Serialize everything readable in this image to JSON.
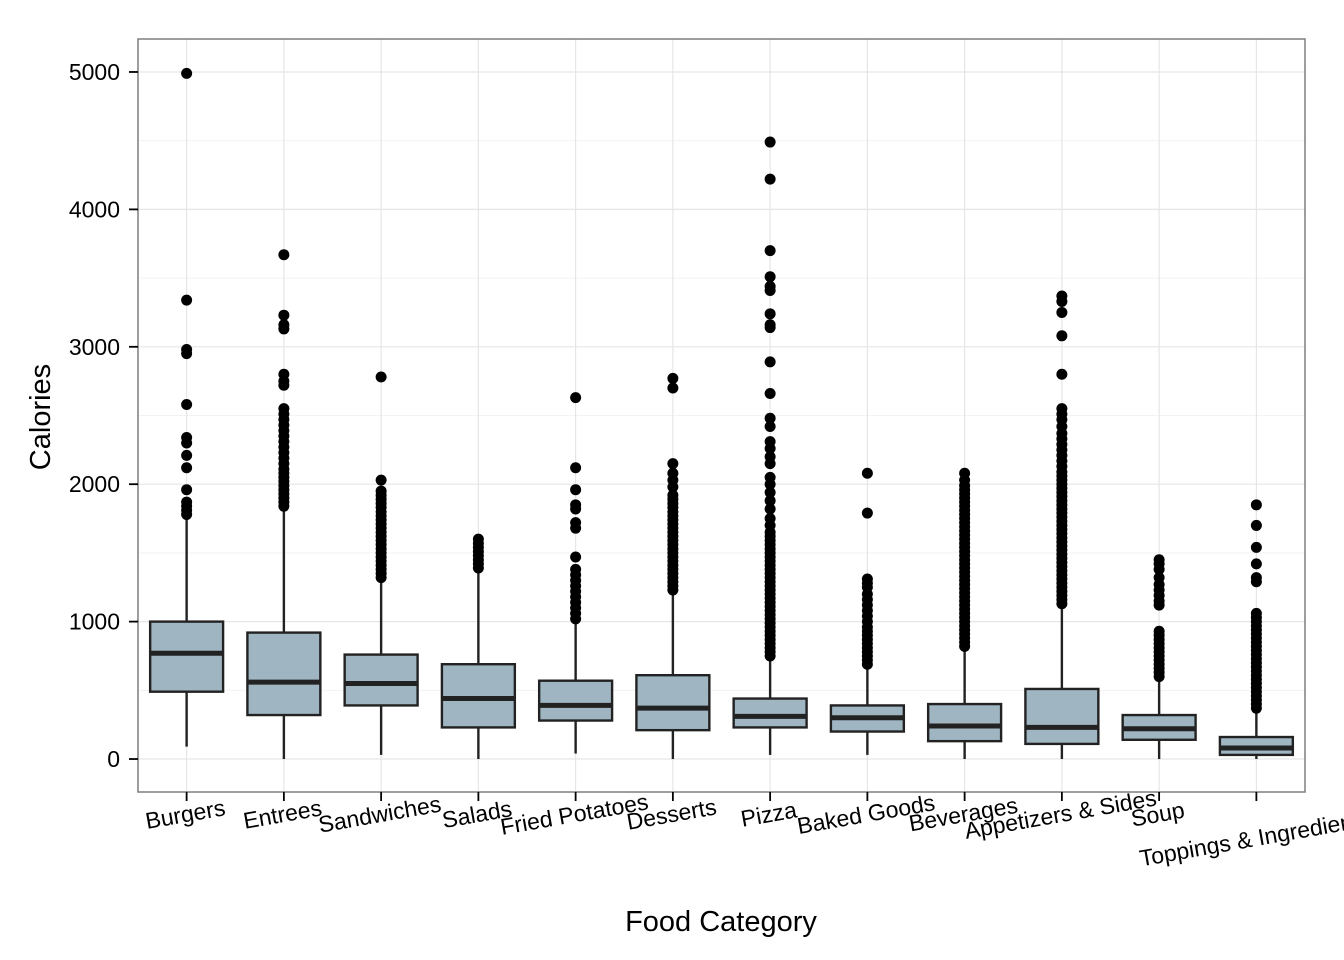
{
  "chart_data": {
    "type": "boxplot",
    "title": "",
    "xlabel": "Food Category",
    "ylabel": "Calories",
    "ylim": [
      -240,
      5240
    ],
    "yticks": [
      0,
      1000,
      2000,
      3000,
      4000,
      5000
    ],
    "grid": true,
    "colors": {
      "box_fill": "#9fb5c2",
      "box_stroke": "#222222",
      "outlier": "#000000",
      "grid_major": "#e6e6e6",
      "grid_minor": "#f3f3f3",
      "panel_border": "#7f7f7f"
    },
    "categories": [
      "Burgers",
      "Entrees",
      "Sandwiches",
      "Salads",
      "Fried Potatoes",
      "Desserts",
      "Pizza",
      "Baked Goods",
      "Beverages",
      "Appetizers & Sides",
      "Soup",
      "Toppings & Ingredients"
    ],
    "boxes": [
      {
        "category": "Burgers",
        "whisker_low": 90,
        "q1": 490,
        "median": 770,
        "q3": 1000,
        "whisker_high": 1760,
        "outliers": [
          1780,
          1810,
          1840,
          1870,
          1960,
          2120,
          2210,
          2300,
          2340,
          2580,
          2950,
          2980,
          3340,
          4990
        ]
      },
      {
        "category": "Entrees",
        "whisker_low": 0,
        "q1": 320,
        "median": 560,
        "q3": 920,
        "whisker_high": 1820,
        "outliers": [
          1840,
          1870,
          1900,
          1930,
          1960,
          1990,
          2020,
          2050,
          2080,
          2110,
          2150,
          2190,
          2230,
          2270,
          2310,
          2350,
          2390,
          2430,
          2470,
          2510,
          2550,
          2720,
          2750,
          2800,
          3130,
          3160,
          3230,
          3670
        ]
      },
      {
        "category": "Sandwiches",
        "whisker_low": 30,
        "q1": 390,
        "median": 550,
        "q3": 760,
        "whisker_high": 1300,
        "outliers": [
          1320,
          1350,
          1380,
          1410,
          1440,
          1470,
          1500,
          1530,
          1560,
          1590,
          1620,
          1650,
          1680,
          1710,
          1740,
          1770,
          1800,
          1830,
          1860,
          1890,
          1920,
          1950,
          2030,
          2780
        ]
      },
      {
        "category": "Salads",
        "whisker_low": 0,
        "q1": 230,
        "median": 440,
        "q3": 690,
        "whisker_high": 1370,
        "outliers": [
          1390,
          1420,
          1450,
          1480,
          1510,
          1540,
          1570,
          1600
        ]
      },
      {
        "category": "Fried Potatoes",
        "whisker_low": 40,
        "q1": 280,
        "median": 390,
        "q3": 570,
        "whisker_high": 1000,
        "outliers": [
          1020,
          1060,
          1100,
          1140,
          1180,
          1220,
          1260,
          1300,
          1340,
          1380,
          1470,
          1680,
          1720,
          1820,
          1850,
          1960,
          2120,
          2630
        ]
      },
      {
        "category": "Desserts",
        "whisker_low": 0,
        "q1": 210,
        "median": 370,
        "q3": 610,
        "whisker_high": 1210,
        "outliers": [
          1230,
          1260,
          1290,
          1320,
          1350,
          1380,
          1410,
          1440,
          1470,
          1500,
          1530,
          1560,
          1590,
          1620,
          1650,
          1680,
          1710,
          1740,
          1770,
          1800,
          1830,
          1860,
          1890,
          1920,
          1980,
          2030,
          2080,
          2150,
          2700,
          2770
        ]
      },
      {
        "category": "Pizza",
        "whisker_low": 30,
        "q1": 230,
        "median": 310,
        "q3": 440,
        "whisker_high": 730,
        "outliers": [
          750,
          780,
          810,
          840,
          870,
          900,
          930,
          960,
          990,
          1020,
          1050,
          1080,
          1110,
          1140,
          1170,
          1200,
          1230,
          1260,
          1290,
          1320,
          1350,
          1380,
          1410,
          1440,
          1470,
          1500,
          1530,
          1560,
          1590,
          1620,
          1650,
          1700,
          1750,
          1820,
          1880,
          1940,
          2000,
          2050,
          2150,
          2200,
          2260,
          2310,
          2420,
          2480,
          2660,
          2890,
          3140,
          3160,
          3240,
          3410,
          3440,
          3510,
          3700,
          4220,
          4490
        ]
      },
      {
        "category": "Baked Goods",
        "whisker_low": 30,
        "q1": 200,
        "median": 300,
        "q3": 390,
        "whisker_high": 670,
        "outliers": [
          690,
          720,
          750,
          780,
          810,
          840,
          870,
          900,
          930,
          960,
          1000,
          1040,
          1080,
          1120,
          1160,
          1200,
          1250,
          1280,
          1310,
          1790,
          2080
        ]
      },
      {
        "category": "Beverages",
        "whisker_low": 0,
        "q1": 130,
        "median": 240,
        "q3": 400,
        "whisker_high": 800,
        "outliers": [
          820,
          850,
          880,
          910,
          940,
          970,
          1000,
          1030,
          1060,
          1090,
          1120,
          1150,
          1180,
          1210,
          1240,
          1270,
          1300,
          1330,
          1360,
          1390,
          1420,
          1450,
          1480,
          1510,
          1540,
          1570,
          1600,
          1630,
          1660,
          1690,
          1720,
          1750,
          1780,
          1810,
          1840,
          1870,
          1900,
          1930,
          1960,
          1990,
          2030,
          2080
        ]
      },
      {
        "category": "Appetizers & Sides",
        "whisker_low": 0,
        "q1": 110,
        "median": 230,
        "q3": 510,
        "whisker_high": 1110,
        "outliers": [
          1130,
          1160,
          1190,
          1220,
          1250,
          1280,
          1310,
          1340,
          1370,
          1400,
          1430,
          1460,
          1490,
          1520,
          1550,
          1580,
          1610,
          1640,
          1670,
          1700,
          1730,
          1760,
          1790,
          1820,
          1850,
          1880,
          1910,
          1940,
          1970,
          2000,
          2030,
          2060,
          2090,
          2130,
          2170,
          2210,
          2250,
          2290,
          2330,
          2370,
          2420,
          2470,
          2510,
          2550,
          2800,
          3080,
          3250,
          3330,
          3370
        ]
      },
      {
        "category": "Soup",
        "whisker_low": 0,
        "q1": 140,
        "median": 220,
        "q3": 320,
        "whisker_high": 580,
        "outliers": [
          600,
          630,
          660,
          690,
          720,
          750,
          780,
          810,
          840,
          870,
          900,
          930,
          1120,
          1150,
          1190,
          1230,
          1270,
          1320,
          1380,
          1420,
          1450
        ]
      },
      {
        "category": "Toppings & Ingredients",
        "whisker_low": 0,
        "q1": 30,
        "median": 80,
        "q3": 160,
        "whisker_high": 350,
        "outliers": [
          370,
          400,
          430,
          460,
          490,
          520,
          550,
          580,
          610,
          640,
          670,
          700,
          730,
          760,
          790,
          820,
          850,
          880,
          910,
          940,
          970,
          1000,
          1030,
          1060,
          1290,
          1320,
          1420,
          1540,
          1700,
          1850
        ]
      }
    ]
  }
}
